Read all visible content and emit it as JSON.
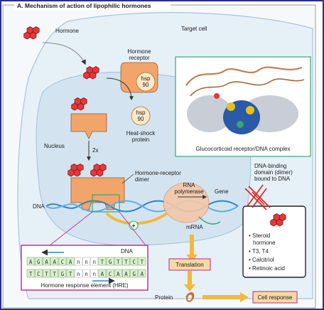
{
  "title": "A. Mechanism of action of lipophilic hormones",
  "labels": {
    "hormone": "Hormone",
    "target_cell": "Target cell",
    "hormone_receptor": [
      "Hormone",
      "receptor"
    ],
    "hsp_top": [
      "hsp",
      "90"
    ],
    "hsp_bottom": [
      "hsp",
      "90"
    ],
    "heat_shock": [
      "Heat-shock",
      "protein"
    ],
    "nucleus": "Nucleus",
    "two_x": "2x",
    "hr_dimer": [
      "Hormone-receptor",
      "dimer"
    ],
    "rna_polymerase": [
      "RNA",
      "polymerase"
    ],
    "gene": "Gene",
    "dna_left": "DNA",
    "mrna": "mRNA",
    "dna_binding": [
      "DNA-binding",
      "domain (dimer)",
      "bound to DNA"
    ],
    "gr_complex": "Glucocorticoid receptor/DNA complex",
    "translation": "Translation",
    "protein": "Protein",
    "cell_response": "Cell response",
    "plus": "+"
  },
  "hre": {
    "dna_label": "DNA",
    "top_strand": [
      "A",
      "G",
      "A",
      "A",
      "C",
      "A",
      "n",
      "n",
      "n",
      "T",
      "G",
      "T",
      "T",
      "C",
      "T"
    ],
    "bottom_strand": [
      "T",
      "C",
      "T",
      "T",
      "G",
      "T",
      "n",
      "n",
      "n",
      "A",
      "C",
      "A",
      "A",
      "G",
      "A"
    ],
    "caption": "Hormone response element (HRE)"
  },
  "hormone_list": [
    "Steroid hormone",
    "T3, T4",
    "Calcitriol",
    "Retinoic acid"
  ],
  "colors": {
    "orange": "#f2a56b",
    "red": "#e23a3a",
    "nucleus": "#cfe0ee",
    "cell": "#e8f1f7",
    "arrow": "#f3b83c",
    "frame_magenta": "#c2248f",
    "frame_green": "#3aa76d"
  }
}
